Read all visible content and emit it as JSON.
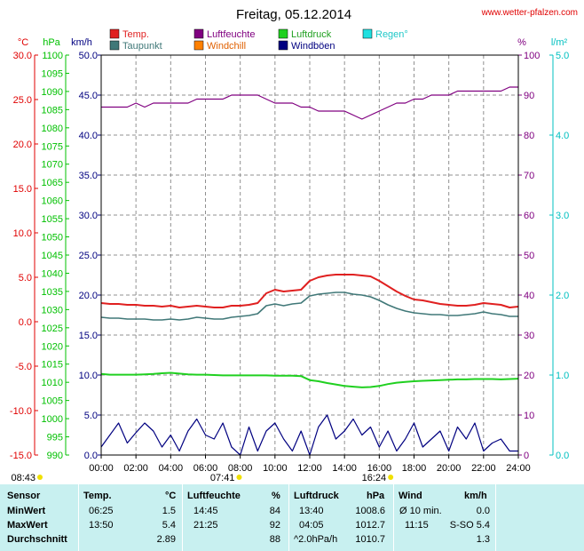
{
  "header": {
    "title": "Freitag, 05.12.2014",
    "website": "www.wetter-pfalzen.com"
  },
  "legend": [
    {
      "label": "Temp.",
      "color": "#e02020"
    },
    {
      "label": "Luftfeuchte",
      "color": "#800080"
    },
    {
      "label": "Luftdruck",
      "color": "#20d020"
    },
    {
      "label": "Regen°",
      "color": "#20e0e0"
    },
    {
      "label": "Taupunkt",
      "color": "#407878"
    },
    {
      "label": "Windchill",
      "color": "#ff8000"
    },
    {
      "label": "Windböen",
      "color": "#000080"
    }
  ],
  "chart_data": {
    "type": "line",
    "x": [
      "00:00",
      "00:30",
      "01:00",
      "01:30",
      "02:00",
      "02:30",
      "03:00",
      "03:30",
      "04:00",
      "04:30",
      "05:00",
      "05:30",
      "06:00",
      "06:30",
      "07:00",
      "07:30",
      "08:00",
      "08:30",
      "09:00",
      "09:30",
      "10:00",
      "10:30",
      "11:00",
      "11:30",
      "12:00",
      "12:30",
      "13:00",
      "13:30",
      "14:00",
      "14:30",
      "15:00",
      "15:30",
      "16:00",
      "16:30",
      "17:00",
      "17:30",
      "18:00",
      "18:30",
      "19:00",
      "19:30",
      "20:00",
      "20:30",
      "21:00",
      "21:30",
      "22:00",
      "22:30",
      "23:00",
      "23:30",
      "24:00"
    ],
    "axes": {
      "temp_c": {
        "label": "°C",
        "ticks": [
          "30.0",
          "25.0",
          "20.0",
          "15.0",
          "10.0",
          "5.0",
          "0.0",
          "-5.0",
          "-10.0",
          "-15.0"
        ],
        "range": [
          -15,
          30
        ]
      },
      "pressure_hpa": {
        "label": "hPa",
        "ticks": [
          "1100",
          "1095",
          "1090",
          "1085",
          "1080",
          "1075",
          "1070",
          "1065",
          "1060",
          "1055",
          "1050",
          "1045",
          "1040",
          "1035",
          "1030",
          "1025",
          "1020",
          "1015",
          "1010",
          "1005",
          "1000",
          "995",
          "990"
        ],
        "range": [
          990,
          1100
        ]
      },
      "wind_kmh": {
        "label": "km/h",
        "ticks": [
          "50.0",
          "45.0",
          "40.0",
          "35.0",
          "30.0",
          "25.0",
          "20.0",
          "15.0",
          "10.0",
          "5.0",
          "0.0"
        ],
        "range": [
          0,
          50
        ]
      },
      "humidity_pct": {
        "label": "%",
        "ticks": [
          "100",
          "90",
          "80",
          "70",
          "60",
          "50",
          "40",
          "30",
          "20",
          "10",
          "0"
        ],
        "range": [
          0,
          100
        ]
      },
      "rain_lm2": {
        "label": "l/m²",
        "ticks": [
          "5.0",
          "4.0",
          "3.0",
          "2.0",
          "1.0",
          "0.0"
        ],
        "range": [
          0,
          5
        ]
      }
    },
    "xticks": [
      "00:00",
      "02:00",
      "04:00",
      "06:00",
      "08:00",
      "10:00",
      "12:00",
      "14:00",
      "16:00",
      "18:00",
      "20:00",
      "22:00",
      "24:00"
    ],
    "grid": true,
    "sun": {
      "sunrise": "08:43",
      "noon": "07:41",
      "sunset": "16:24"
    },
    "series": [
      {
        "name": "Temp.",
        "axis": "temp_c",
        "color": "#e02020",
        "values": [
          2.1,
          2.0,
          2.0,
          1.9,
          1.9,
          1.8,
          1.8,
          1.7,
          1.8,
          1.6,
          1.7,
          1.8,
          1.7,
          1.6,
          1.6,
          1.8,
          1.8,
          1.9,
          2.1,
          3.2,
          3.6,
          3.4,
          3.5,
          3.6,
          4.6,
          5.0,
          5.2,
          5.3,
          5.3,
          5.3,
          5.2,
          5.1,
          4.6,
          4.0,
          3.4,
          2.9,
          2.5,
          2.4,
          2.2,
          2.0,
          1.9,
          1.8,
          1.8,
          1.9,
          2.1,
          2.0,
          1.9,
          1.6,
          1.7
        ]
      },
      {
        "name": "Taupunkt",
        "axis": "temp_c",
        "color": "#407878",
        "values": [
          0.5,
          0.4,
          0.4,
          0.3,
          0.3,
          0.3,
          0.2,
          0.2,
          0.3,
          0.2,
          0.3,
          0.5,
          0.4,
          0.3,
          0.3,
          0.5,
          0.6,
          0.7,
          0.9,
          1.8,
          2.0,
          1.8,
          2.0,
          2.1,
          2.9,
          3.1,
          3.2,
          3.3,
          3.3,
          3.1,
          3.0,
          2.8,
          2.4,
          1.9,
          1.5,
          1.2,
          1.0,
          0.9,
          0.8,
          0.8,
          0.7,
          0.7,
          0.8,
          0.9,
          1.1,
          0.9,
          0.8,
          0.6,
          0.6
        ]
      },
      {
        "name": "Luftfeuchte",
        "axis": "humidity_pct",
        "color": "#800080",
        "values": [
          87,
          87,
          87,
          87,
          88,
          87,
          88,
          88,
          88,
          88,
          88,
          89,
          89,
          89,
          89,
          90,
          90,
          90,
          90,
          89,
          88,
          88,
          88,
          87,
          87,
          86,
          86,
          86,
          86,
          85,
          84,
          85,
          86,
          87,
          88,
          88,
          89,
          89,
          90,
          90,
          90,
          91,
          91,
          91,
          91,
          91,
          91,
          92,
          92
        ]
      },
      {
        "name": "Luftdruck",
        "axis": "pressure_hpa",
        "color": "#20d020",
        "values": [
          1012.3,
          1012.1,
          1012.1,
          1012.1,
          1012.1,
          1012.2,
          1012.3,
          1012.5,
          1012.6,
          1012.4,
          1012.2,
          1012.1,
          1012.1,
          1012.0,
          1011.9,
          1011.9,
          1011.9,
          1011.9,
          1011.9,
          1011.9,
          1011.8,
          1011.8,
          1011.8,
          1011.7,
          1010.6,
          1010.3,
          1009.8,
          1009.4,
          1009.0,
          1008.8,
          1008.6,
          1008.7,
          1009.0,
          1009.5,
          1009.9,
          1010.1,
          1010.3,
          1010.4,
          1010.5,
          1010.6,
          1010.7,
          1010.8,
          1010.8,
          1010.9,
          1010.9,
          1010.9,
          1010.8,
          1010.9,
          1011.0
        ]
      },
      {
        "name": "Windböen",
        "axis": "wind_kmh",
        "color": "#000080",
        "values": [
          1.0,
          2.5,
          4.0,
          1.5,
          2.8,
          4.0,
          3.0,
          1.0,
          2.5,
          0.5,
          3.0,
          4.5,
          2.5,
          2.0,
          4.0,
          1.0,
          0.0,
          3.5,
          0.5,
          3.0,
          4.0,
          2.0,
          0.5,
          3.0,
          0.0,
          3.5,
          5.0,
          2.0,
          3.0,
          4.5,
          2.5,
          3.5,
          1.0,
          3.0,
          0.5,
          2.0,
          4.0,
          1.0,
          2.0,
          3.0,
          0.5,
          3.5,
          2.0,
          4.0,
          0.5,
          1.5,
          2.0,
          0.5,
          0.5
        ]
      }
    ]
  },
  "stats": {
    "headers": {
      "sensor": "Sensor",
      "temp": "Temp.",
      "temp_unit": "°C",
      "hum": "Luftfeuchte",
      "hum_unit": "%",
      "press": "Luftdruck",
      "press_unit": "hPa",
      "wind": "Wind",
      "wind_unit": "km/h"
    },
    "rows": [
      {
        "label": "MinWert",
        "temp_time": "06:25",
        "temp_val": "1.5",
        "hum_time": "14:45",
        "hum_val": "84",
        "press_time": "13:40",
        "press_val": "1008.6",
        "wind_time": "Ø 10 min.",
        "wind_val": "0.0"
      },
      {
        "label": "MaxWert",
        "temp_time": "13:50",
        "temp_val": "5.4",
        "hum_time": "21:25",
        "hum_val": "92",
        "press_time": "04:05",
        "press_val": "1012.7",
        "wind_time": "11:15",
        "wind_val": "S-SO 5.4"
      },
      {
        "label": "Durchschnitt",
        "temp_time": "",
        "temp_val": "2.89",
        "hum_time": "",
        "hum_val": "88",
        "press_time": "^2.0hPa/h",
        "press_val": "1010.7",
        "wind_time": "",
        "wind_val": "1.3"
      }
    ]
  }
}
